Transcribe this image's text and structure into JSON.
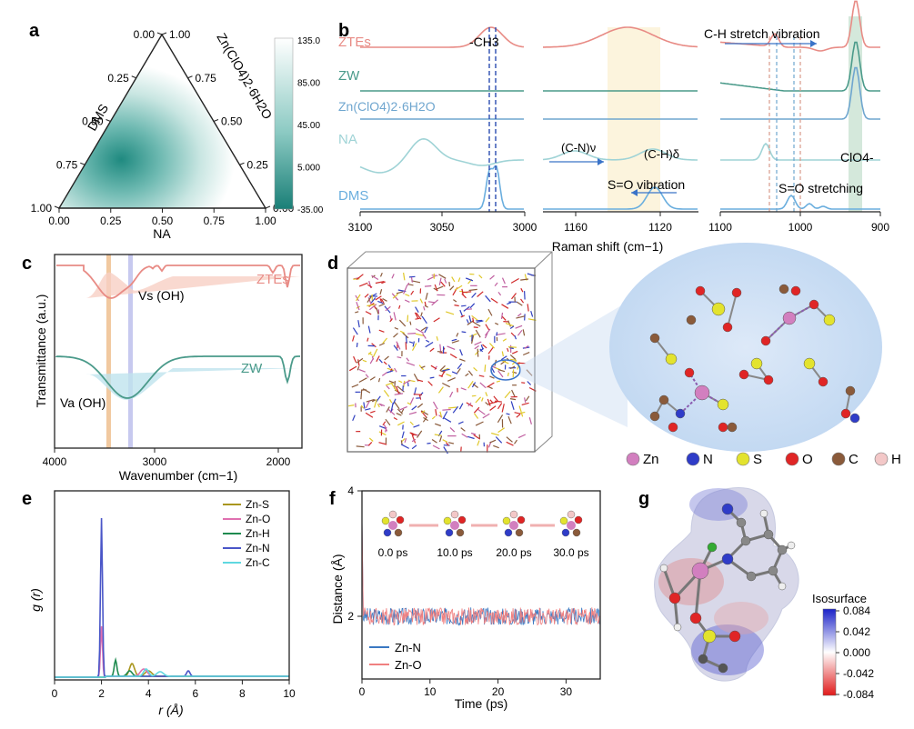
{
  "panels": {
    "a": {
      "letter": "a",
      "xlabel": "NA",
      "left_label": "DMS",
      "right_label": "Zn(ClO4)2·6H2O",
      "bottom_ticks": [
        "0.00",
        "0.25",
        "0.50",
        "0.75",
        "1.00"
      ],
      "left_ticks": [
        "0.00",
        "0.25",
        "0.50",
        "0.75",
        "1.00"
      ],
      "right_ticks": [
        "1.00",
        "0.75",
        "0.50",
        "0.25",
        "0.00"
      ],
      "colorbar_ticks": [
        "135.0",
        "85.00",
        "45.00",
        "5.000",
        "-35.00"
      ]
    },
    "b": {
      "letter": "b",
      "xlabel": "Raman shift (cm−1)",
      "labels": [
        "ZTEs",
        "ZW",
        "Zn(ClO4)2·6H2O",
        "NA",
        "DMS"
      ],
      "ticks1": [
        "3100",
        "3050",
        "3000"
      ],
      "ticks2": [
        "1160",
        "1120"
      ],
      "ticks3": [
        "1100",
        "1000",
        "900"
      ],
      "ann": {
        "ch3": "-CH3",
        "cn": "(C-N)ν",
        "ch": "(C-H)δ",
        "so_vib": "S=O vibration",
        "chstretch": "C-H stretch vibration",
        "clo4": "ClO4-",
        "so_str": "S=O stretching"
      }
    },
    "c": {
      "letter": "c",
      "xlabel": "Wavenumber (cm−1)",
      "ylabel": "Transmittance (a.u.)",
      "ticks": [
        "4000",
        "3000",
        "2000"
      ],
      "ztes": "ZTEs",
      "zw": "ZW",
      "vs": "Vs (OH)",
      "va": "Va (OH)"
    },
    "d": {
      "letter": "d",
      "legend": [
        "Zn",
        "N",
        "S",
        "O",
        "C",
        "H"
      ]
    },
    "e": {
      "letter": "e",
      "xlabel": "r (Å)",
      "ylabel": "g (r)",
      "ticks": [
        "0",
        "2",
        "4",
        "6",
        "8",
        "10"
      ],
      "legend": [
        "Zn-S",
        "Zn-O",
        "Zn-H",
        "Zn-N",
        "Zn-C"
      ]
    },
    "f": {
      "letter": "f",
      "xlabel": "Time (ps)",
      "ylabel": "Distance (Å)",
      "xticks": [
        "0",
        "10",
        "20",
        "30"
      ],
      "yticks": [
        "4",
        "2"
      ],
      "snap_labels": [
        "0.0 ps",
        "10.0 ps",
        "20.0 ps",
        "30.0 ps"
      ],
      "legend": [
        "Zn-N",
        "Zn-O"
      ]
    },
    "g": {
      "letter": "g",
      "title": "Isosurface",
      "ticks": [
        "0.084",
        "0.042",
        "0.000",
        "-0.042",
        "-0.084"
      ]
    }
  },
  "colors": {
    "ZTEs": "#e88b85",
    "ZW": "#4a9a8a",
    "ZnClO4": "#6fa6cf",
    "NA": "#9fd3d6",
    "DMS": "#6aaede",
    "teal": "#2a8f84",
    "zn": "#d27fbf",
    "n": "#2f3cc8",
    "s": "#e3e32e",
    "o": "#e02525",
    "c": "#8a5a3a",
    "h": "#f3c8c8"
  },
  "chart_data": [
    {
      "type": "heatmap",
      "panel": "a",
      "axes": [
        "NA",
        "DMS",
        "Zn(ClO4)2·6H2O"
      ],
      "range": [
        -35,
        135
      ],
      "hotspot": {
        "NA": 0.25,
        "DMS": 0.7,
        "Zn(ClO4)2·6H2O": 0.05
      }
    },
    {
      "type": "line",
      "panel": "b",
      "xlabel": "Raman shift (cm−1)",
      "series": [
        {
          "name": "ZTEs",
          "peaks": [
            3027,
            1134,
            1045,
            940
          ]
        },
        {
          "name": "ZW",
          "peaks": [
            940
          ]
        },
        {
          "name": "Zn(ClO4)2·6H2O",
          "peaks": [
            940
          ]
        },
        {
          "name": "NA",
          "peaks": [
            3060,
            1160,
            1118,
            1045
          ]
        },
        {
          "name": "DMS",
          "peaks": [
            3020,
            3012,
            1120,
            1014
          ]
        }
      ]
    },
    {
      "type": "line",
      "panel": "c",
      "xlim": [
        4000,
        1200
      ],
      "series": [
        {
          "name": "ZTEs",
          "minima": [
            3400,
            1650
          ]
        },
        {
          "name": "ZW",
          "minima": [
            3250,
            1640
          ]
        }
      ]
    },
    {
      "type": "line",
      "panel": "e",
      "xlim": [
        0,
        10
      ],
      "series": [
        {
          "name": "Zn-S",
          "peaks": [
            3.3
          ]
        },
        {
          "name": "Zn-O",
          "peaks": [
            2.0
          ]
        },
        {
          "name": "Zn-H",
          "peaks": [
            2.6
          ]
        },
        {
          "name": "Zn-N",
          "peaks": [
            2.0
          ],
          "peak_value": 9.5
        },
        {
          "name": "Zn-C",
          "peaks": [
            3.9
          ]
        }
      ]
    },
    {
      "type": "line",
      "panel": "f",
      "xlim": [
        0,
        35
      ],
      "ylim": [
        1,
        4
      ],
      "series": [
        {
          "name": "Zn-N",
          "mean": 2.0
        },
        {
          "name": "Zn-O",
          "mean": 2.0
        }
      ]
    }
  ]
}
